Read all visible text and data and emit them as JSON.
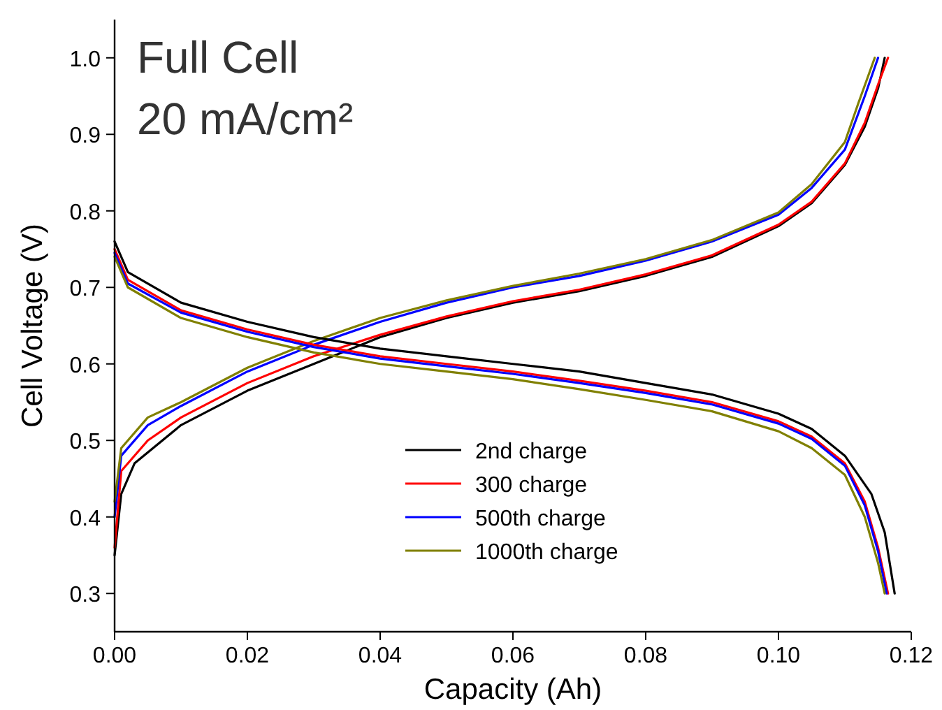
{
  "chart_data": {
    "type": "line",
    "xlabel": "Capacity (Ah)",
    "ylabel": "Cell Voltage (V)",
    "annotations": [
      "Full Cell",
      "20 mA/cm²"
    ],
    "xlim": [
      0,
      0.12
    ],
    "xticks": [
      {
        "value": 0,
        "label": "0.00"
      },
      {
        "value": 0.02,
        "label": "0.02"
      },
      {
        "value": 0.04,
        "label": "0.04"
      },
      {
        "value": 0.06,
        "label": "0.06"
      },
      {
        "value": 0.08,
        "label": "0.08"
      },
      {
        "value": 0.1,
        "label": "0.10"
      },
      {
        "value": 0.12,
        "label": "0.12"
      }
    ],
    "ylim": [
      0.25,
      1.05
    ],
    "yticks": [
      0.3,
      0.4,
      0.5,
      0.6,
      0.7,
      0.8,
      0.9,
      {
        "value": 1,
        "label": "1.0"
      }
    ],
    "legend": "bottom",
    "grid": false,
    "series": [
      {
        "name": "2nd charge",
        "color": "#000000",
        "x": [
          0,
          0.001,
          0.003,
          0.01,
          0.02,
          0.03,
          0.04,
          0.05,
          0.06,
          0.07,
          0.08,
          0.09,
          0.1,
          0.105,
          0.11,
          0.113,
          0.115,
          0.116
        ],
        "values": [
          0.35,
          0.43,
          0.47,
          0.52,
          0.565,
          0.6,
          0.635,
          0.66,
          0.68,
          0.695,
          0.715,
          0.74,
          0.78,
          0.81,
          0.86,
          0.91,
          0.96,
          1.0
        ]
      },
      {
        "name": "300 charge",
        "color": "#ff0000",
        "x": [
          0,
          0.001,
          0.005,
          0.01,
          0.02,
          0.03,
          0.04,
          0.05,
          0.06,
          0.07,
          0.08,
          0.09,
          0.1,
          0.105,
          0.11,
          0.113,
          0.115,
          0.1165
        ],
        "values": [
          0.36,
          0.46,
          0.5,
          0.53,
          0.575,
          0.61,
          0.638,
          0.662,
          0.682,
          0.697,
          0.717,
          0.742,
          0.782,
          0.812,
          0.862,
          0.915,
          0.965,
          1.0
        ]
      },
      {
        "name": "500th charge",
        "color": "#0000ff",
        "x": [
          0,
          0.001,
          0.005,
          0.01,
          0.02,
          0.03,
          0.04,
          0.05,
          0.06,
          0.07,
          0.08,
          0.09,
          0.1,
          0.105,
          0.11,
          0.113,
          0.115
        ],
        "values": [
          0.4,
          0.48,
          0.52,
          0.545,
          0.59,
          0.625,
          0.655,
          0.68,
          0.7,
          0.715,
          0.735,
          0.76,
          0.795,
          0.83,
          0.88,
          0.95,
          1.0
        ]
      },
      {
        "name": "1000th charge",
        "color": "#808000",
        "x": [
          0,
          0.001,
          0.005,
          0.01,
          0.02,
          0.03,
          0.04,
          0.05,
          0.06,
          0.07,
          0.08,
          0.09,
          0.1,
          0.105,
          0.11,
          0.112,
          0.1145
        ],
        "values": [
          0.42,
          0.49,
          0.53,
          0.55,
          0.595,
          0.63,
          0.66,
          0.683,
          0.702,
          0.718,
          0.737,
          0.762,
          0.798,
          0.835,
          0.89,
          0.94,
          1.0
        ]
      },
      {
        "color": "#000000",
        "x": [
          0,
          0.002,
          0.01,
          0.02,
          0.03,
          0.04,
          0.05,
          0.06,
          0.07,
          0.08,
          0.09,
          0.1,
          0.105,
          0.11,
          0.114,
          0.116,
          0.1175
        ],
        "values": [
          0.76,
          0.72,
          0.68,
          0.655,
          0.635,
          0.62,
          0.61,
          0.6,
          0.59,
          0.575,
          0.56,
          0.535,
          0.515,
          0.48,
          0.43,
          0.38,
          0.3
        ]
      },
      {
        "color": "#ff0000",
        "x": [
          0,
          0.002,
          0.01,
          0.02,
          0.03,
          0.04,
          0.05,
          0.06,
          0.07,
          0.08,
          0.09,
          0.1,
          0.105,
          0.11,
          0.113,
          0.115,
          0.1165
        ],
        "values": [
          0.75,
          0.71,
          0.67,
          0.645,
          0.625,
          0.61,
          0.6,
          0.59,
          0.578,
          0.565,
          0.55,
          0.525,
          0.505,
          0.47,
          0.42,
          0.36,
          0.3
        ]
      },
      {
        "color": "#0000ff",
        "x": [
          0,
          0.002,
          0.01,
          0.02,
          0.03,
          0.04,
          0.05,
          0.06,
          0.07,
          0.08,
          0.09,
          0.1,
          0.105,
          0.11,
          0.113,
          0.115,
          0.1163
        ],
        "values": [
          0.745,
          0.705,
          0.667,
          0.642,
          0.622,
          0.607,
          0.597,
          0.587,
          0.575,
          0.562,
          0.547,
          0.522,
          0.502,
          0.467,
          0.415,
          0.355,
          0.3
        ]
      },
      {
        "color": "#808000",
        "x": [
          0,
          0.002,
          0.01,
          0.02,
          0.03,
          0.04,
          0.05,
          0.06,
          0.07,
          0.08,
          0.09,
          0.1,
          0.105,
          0.11,
          0.113,
          0.115,
          0.116
        ],
        "values": [
          0.74,
          0.7,
          0.66,
          0.635,
          0.615,
          0.6,
          0.59,
          0.58,
          0.567,
          0.553,
          0.538,
          0.512,
          0.49,
          0.455,
          0.4,
          0.34,
          0.3
        ]
      }
    ]
  }
}
